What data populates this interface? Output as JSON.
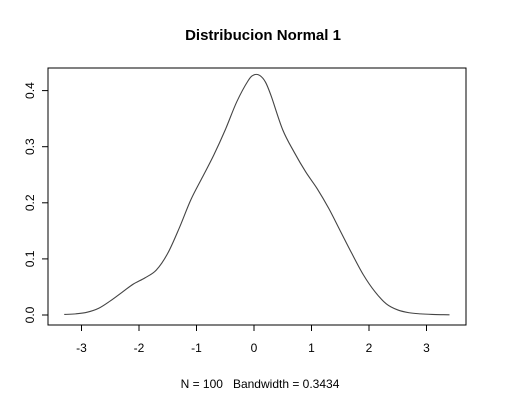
{
  "chart_data": {
    "type": "line",
    "title": "Distribucion Normal 1",
    "xlabel": "N = 100   Bandwidth = 0.3434",
    "ylabel": "",
    "xlim": [
      -3.4,
      3.5
    ],
    "ylim": [
      0,
      0.45
    ],
    "x_ticks": [
      -3,
      -2,
      -1,
      0,
      1,
      2,
      3
    ],
    "y_ticks": [
      0.0,
      0.1,
      0.2,
      0.3,
      0.4
    ],
    "x_tick_labels": [
      "-3",
      "-2",
      "-1",
      "0",
      "1",
      "2",
      "3"
    ],
    "y_tick_labels": [
      "0.0",
      "0.1",
      "0.2",
      "0.3",
      "0.4"
    ],
    "grid": false,
    "series": [
      {
        "color": "#444444",
        "x": [
          -3.3,
          -3.1,
          -2.9,
          -2.7,
          -2.5,
          -2.3,
          -2.1,
          -1.9,
          -1.7,
          -1.5,
          -1.3,
          -1.1,
          -0.9,
          -0.7,
          -0.5,
          -0.3,
          -0.1,
          0.0,
          0.1,
          0.2,
          0.3,
          0.5,
          0.7,
          0.9,
          1.1,
          1.3,
          1.5,
          1.7,
          1.9,
          2.1,
          2.3,
          2.5,
          2.7,
          2.9,
          3.1,
          3.3,
          3.4
        ],
        "y": [
          0.001,
          0.002,
          0.005,
          0.012,
          0.025,
          0.04,
          0.055,
          0.066,
          0.08,
          0.11,
          0.155,
          0.205,
          0.245,
          0.285,
          0.33,
          0.38,
          0.418,
          0.428,
          0.427,
          0.415,
          0.39,
          0.33,
          0.29,
          0.255,
          0.225,
          0.19,
          0.15,
          0.11,
          0.072,
          0.042,
          0.02,
          0.009,
          0.004,
          0.002,
          0.001,
          0.0005,
          0.0003
        ]
      }
    ]
  }
}
